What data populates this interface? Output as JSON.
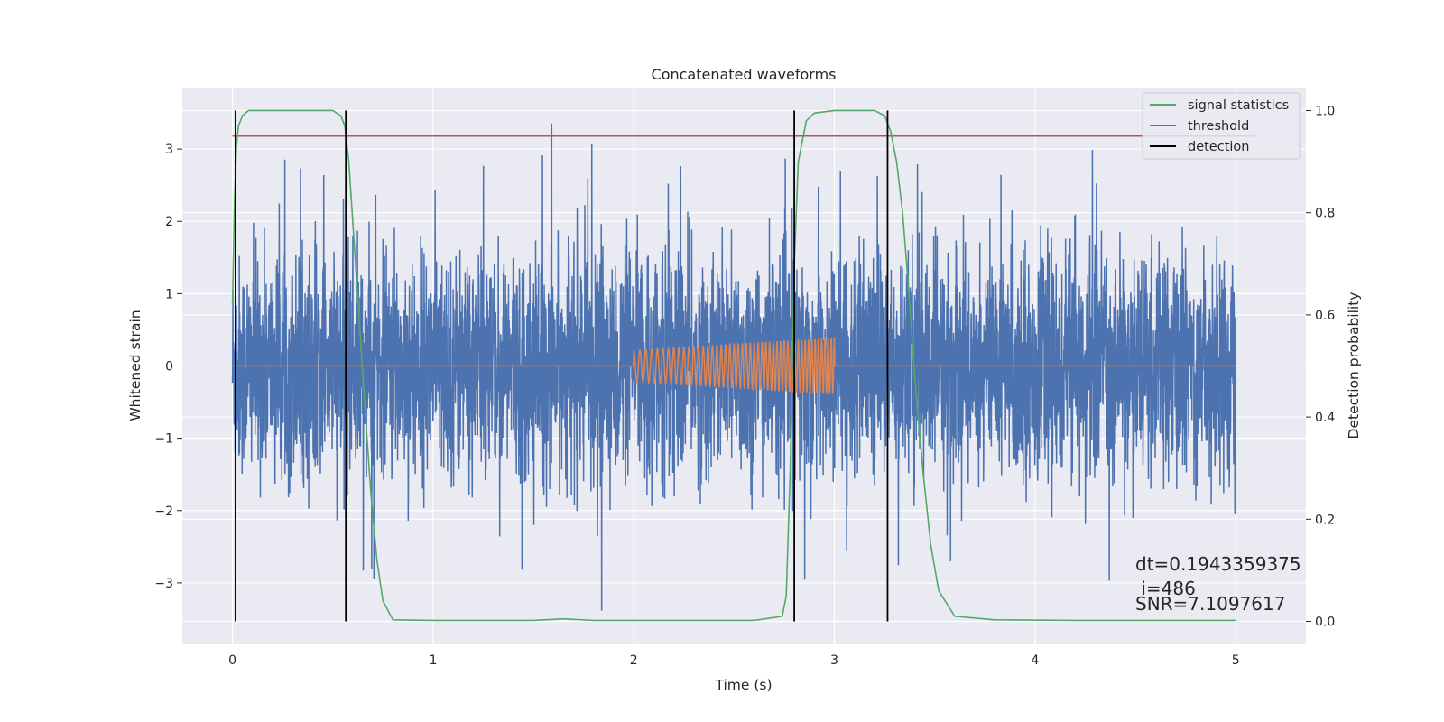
{
  "chart_data": {
    "type": "line",
    "title": "Concatenated waveforms",
    "xlabel": "Time (s)",
    "ylabel_left": "Whitened strain",
    "ylabel_right": "Detection probability",
    "xlim": [
      -0.25,
      5.35
    ],
    "ylim_left": [
      -3.85,
      3.85
    ],
    "ylim_right": [
      -0.045,
      1.045
    ],
    "x_ticks": [
      0,
      1,
      2,
      3,
      4,
      5
    ],
    "y_left_ticks": [
      -3,
      -2,
      -1,
      0,
      1,
      2,
      3
    ],
    "y_right_ticks": [
      0.0,
      0.2,
      0.4,
      0.6,
      0.8,
      1.0
    ],
    "grid": true,
    "legend_position": "top-right",
    "series": [
      {
        "name": "",
        "axis": "left",
        "kind": "noise",
        "color": "#4c72b0",
        "x_range": [
          0,
          5
        ],
        "typical_amplitude": 1.5,
        "peak_max": 3.5,
        "peak_min": -3.5
      },
      {
        "name": "",
        "axis": "left",
        "kind": "chirp",
        "color": "#dd8452",
        "x_range": [
          0,
          5
        ],
        "chirp_start": 2.0,
        "chirp_end": 3.0,
        "amplitude_start": 0.22,
        "amplitude_end": 0.4
      },
      {
        "name": "signal statistics",
        "axis": "right",
        "color": "#55a868",
        "x": [
          0,
          0.01,
          0.02,
          0.03,
          0.05,
          0.08,
          0.15,
          0.3,
          0.45,
          0.5,
          0.54,
          0.56,
          0.58,
          0.6,
          0.63,
          0.66,
          0.69,
          0.72,
          0.75,
          0.8,
          1.0,
          1.5,
          1.65,
          1.8,
          2.2,
          2.6,
          2.74,
          2.76,
          2.78,
          2.8,
          2.82,
          2.86,
          2.9,
          3.0,
          3.2,
          3.25,
          3.28,
          3.31,
          3.34,
          3.37,
          3.4,
          3.44,
          3.48,
          3.52,
          3.6,
          3.8,
          4.2,
          5.0
        ],
        "y": [
          0.62,
          0.82,
          0.93,
          0.97,
          0.99,
          1.0,
          1.0,
          1.0,
          1.0,
          1.0,
          0.99,
          0.97,
          0.9,
          0.78,
          0.6,
          0.42,
          0.25,
          0.12,
          0.04,
          0.003,
          0.002,
          0.002,
          0.005,
          0.002,
          0.002,
          0.002,
          0.01,
          0.05,
          0.3,
          0.7,
          0.9,
          0.98,
          0.995,
          1.0,
          1.0,
          0.99,
          0.96,
          0.9,
          0.8,
          0.65,
          0.48,
          0.3,
          0.15,
          0.06,
          0.01,
          0.003,
          0.002,
          0.002
        ]
      },
      {
        "name": "threshold",
        "axis": "right",
        "color": "#c44e52",
        "x": [
          0,
          5.1
        ],
        "y": [
          0.95,
          0.95
        ]
      },
      {
        "name": "detection",
        "axis": "right",
        "color": "#000000",
        "kind": "vlines",
        "x": [
          0.015,
          0.565,
          2.8,
          3.265
        ],
        "y_range": [
          0.0,
          1.0
        ]
      }
    ],
    "annotations": [
      "dt=0.1943359375",
      " i=486",
      "SNR=7.1097617"
    ]
  }
}
